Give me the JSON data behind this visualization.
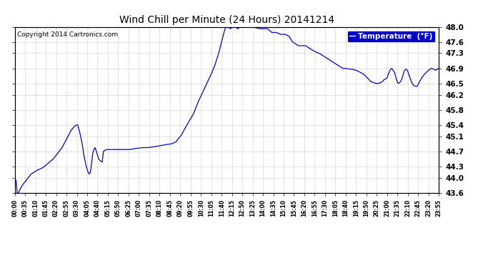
{
  "title": "Wind Chill per Minute (24 Hours) 20141214",
  "copyright": "Copyright 2014 Cartronics.com",
  "line_color": "#0000cc",
  "bg_color": "#ffffff",
  "grid_color": "#aaaaaa",
  "ylim": [
    43.6,
    48.0
  ],
  "yticks": [
    43.6,
    44.0,
    44.3,
    44.7,
    45.1,
    45.4,
    45.8,
    46.2,
    46.5,
    46.9,
    47.3,
    47.6,
    48.0
  ],
  "legend_bg": "#0000cc",
  "legend_text": "Temperature  (°F)",
  "keypoints": [
    [
      0,
      44.0
    ],
    [
      5,
      43.9
    ],
    [
      8,
      43.6
    ],
    [
      12,
      43.6
    ],
    [
      18,
      43.7
    ],
    [
      25,
      43.8
    ],
    [
      35,
      43.9
    ],
    [
      45,
      44.0
    ],
    [
      55,
      44.1
    ],
    [
      65,
      44.15
    ],
    [
      75,
      44.2
    ],
    [
      90,
      44.25
    ],
    [
      100,
      44.3
    ],
    [
      115,
      44.4
    ],
    [
      130,
      44.5
    ],
    [
      145,
      44.65
    ],
    [
      160,
      44.8
    ],
    [
      170,
      44.95
    ],
    [
      180,
      45.1
    ],
    [
      190,
      45.25
    ],
    [
      200,
      45.35
    ],
    [
      208,
      45.4
    ],
    [
      213,
      45.4
    ],
    [
      220,
      45.2
    ],
    [
      228,
      44.9
    ],
    [
      235,
      44.55
    ],
    [
      242,
      44.3
    ],
    [
      248,
      44.15
    ],
    [
      252,
      44.1
    ],
    [
      256,
      44.15
    ],
    [
      260,
      44.4
    ],
    [
      264,
      44.65
    ],
    [
      268,
      44.75
    ],
    [
      272,
      44.8
    ],
    [
      278,
      44.65
    ],
    [
      284,
      44.5
    ],
    [
      290,
      44.45
    ],
    [
      296,
      44.42
    ],
    [
      300,
      44.7
    ],
    [
      310,
      44.75
    ],
    [
      330,
      44.75
    ],
    [
      350,
      44.75
    ],
    [
      370,
      44.75
    ],
    [
      390,
      44.75
    ],
    [
      410,
      44.78
    ],
    [
      430,
      44.8
    ],
    [
      450,
      44.8
    ],
    [
      470,
      44.82
    ],
    [
      490,
      44.85
    ],
    [
      510,
      44.88
    ],
    [
      530,
      44.9
    ],
    [
      545,
      44.95
    ],
    [
      555,
      45.05
    ],
    [
      565,
      45.15
    ],
    [
      575,
      45.3
    ],
    [
      590,
      45.5
    ],
    [
      605,
      45.7
    ],
    [
      620,
      46.0
    ],
    [
      635,
      46.25
    ],
    [
      650,
      46.5
    ],
    [
      665,
      46.75
    ],
    [
      678,
      47.0
    ],
    [
      690,
      47.3
    ],
    [
      700,
      47.6
    ],
    [
      708,
      47.85
    ],
    [
      714,
      48.0
    ],
    [
      720,
      48.0
    ],
    [
      730,
      47.95
    ],
    [
      738,
      48.0
    ],
    [
      745,
      48.0
    ],
    [
      755,
      47.95
    ],
    [
      762,
      48.0
    ],
    [
      775,
      48.0
    ],
    [
      800,
      48.0
    ],
    [
      830,
      47.95
    ],
    [
      855,
      47.95
    ],
    [
      870,
      47.85
    ],
    [
      885,
      47.85
    ],
    [
      900,
      47.8
    ],
    [
      915,
      47.8
    ],
    [
      928,
      47.75
    ],
    [
      940,
      47.6
    ],
    [
      950,
      47.55
    ],
    [
      960,
      47.5
    ],
    [
      975,
      47.5
    ],
    [
      985,
      47.5
    ],
    [
      993,
      47.45
    ],
    [
      1000,
      47.42
    ],
    [
      1008,
      47.38
    ],
    [
      1015,
      47.35
    ],
    [
      1022,
      47.32
    ],
    [
      1030,
      47.3
    ],
    [
      1040,
      47.25
    ],
    [
      1050,
      47.2
    ],
    [
      1060,
      47.15
    ],
    [
      1070,
      47.1
    ],
    [
      1080,
      47.05
    ],
    [
      1090,
      47.0
    ],
    [
      1100,
      46.95
    ],
    [
      1110,
      46.9
    ],
    [
      1120,
      46.9
    ],
    [
      1130,
      46.88
    ],
    [
      1140,
      46.88
    ],
    [
      1155,
      46.85
    ],
    [
      1168,
      46.8
    ],
    [
      1180,
      46.75
    ],
    [
      1193,
      46.65
    ],
    [
      1205,
      46.55
    ],
    [
      1215,
      46.52
    ],
    [
      1222,
      46.5
    ],
    [
      1230,
      46.5
    ],
    [
      1238,
      46.52
    ],
    [
      1244,
      46.55
    ],
    [
      1250,
      46.6
    ],
    [
      1255,
      46.62
    ],
    [
      1260,
      46.65
    ],
    [
      1263,
      46.72
    ],
    [
      1266,
      46.78
    ],
    [
      1268,
      46.82
    ],
    [
      1270,
      46.85
    ],
    [
      1273,
      46.88
    ],
    [
      1276,
      46.9
    ],
    [
      1278,
      46.88
    ],
    [
      1280,
      46.85
    ],
    [
      1283,
      46.82
    ],
    [
      1286,
      46.78
    ],
    [
      1288,
      46.72
    ],
    [
      1290,
      46.65
    ],
    [
      1293,
      46.58
    ],
    [
      1296,
      46.52
    ],
    [
      1298,
      46.5
    ],
    [
      1302,
      46.52
    ],
    [
      1306,
      46.55
    ],
    [
      1310,
      46.62
    ],
    [
      1313,
      46.7
    ],
    [
      1316,
      46.78
    ],
    [
      1318,
      46.83
    ],
    [
      1320,
      46.85
    ],
    [
      1322,
      46.87
    ],
    [
      1324,
      46.88
    ],
    [
      1326,
      46.87
    ],
    [
      1328,
      46.85
    ],
    [
      1330,
      46.82
    ],
    [
      1333,
      46.75
    ],
    [
      1336,
      46.68
    ],
    [
      1340,
      46.6
    ],
    [
      1344,
      46.52
    ],
    [
      1347,
      46.48
    ],
    [
      1350,
      46.45
    ],
    [
      1355,
      46.43
    ],
    [
      1360,
      46.42
    ],
    [
      1363,
      46.44
    ],
    [
      1366,
      46.48
    ],
    [
      1370,
      46.55
    ],
    [
      1375,
      46.62
    ],
    [
      1380,
      46.68
    ],
    [
      1387,
      46.75
    ],
    [
      1394,
      46.8
    ],
    [
      1400,
      46.85
    ],
    [
      1405,
      46.88
    ],
    [
      1410,
      46.9
    ],
    [
      1415,
      46.88
    ],
    [
      1420,
      46.87
    ],
    [
      1425,
      46.85
    ],
    [
      1430,
      46.88
    ],
    [
      1435,
      46.9
    ]
  ]
}
